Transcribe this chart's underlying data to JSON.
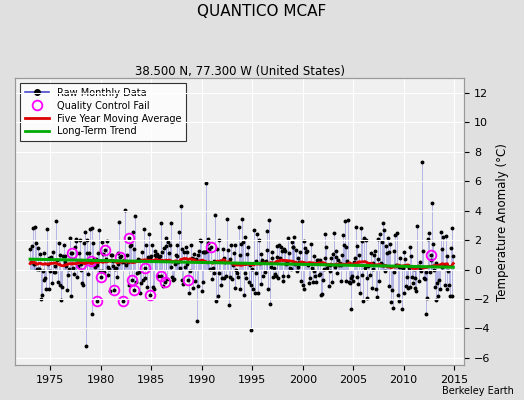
{
  "title": "QUANTICO MCAF",
  "subtitle": "38.500 N, 77.300 W (United States)",
  "credit": "Berkeley Earth",
  "ylabel": "Temperature Anomaly (°C)",
  "xlim": [
    1971.5,
    2016.0
  ],
  "ylim": [
    -6.5,
    13.0
  ],
  "yticks": [
    -6,
    -4,
    -2,
    0,
    2,
    4,
    6,
    8,
    10,
    12
  ],
  "xticks": [
    1975,
    1980,
    1985,
    1990,
    1995,
    2000,
    2005,
    2010,
    2015
  ],
  "background_color": "#e0e0e0",
  "plot_bg_color": "#f0f0f0",
  "raw_color": "#4444cc",
  "moving_avg_color": "#dd0000",
  "trend_color": "#00aa00",
  "qc_fail_color": "#ff00ff",
  "grid_color": "#cccccc",
  "seed": 42
}
